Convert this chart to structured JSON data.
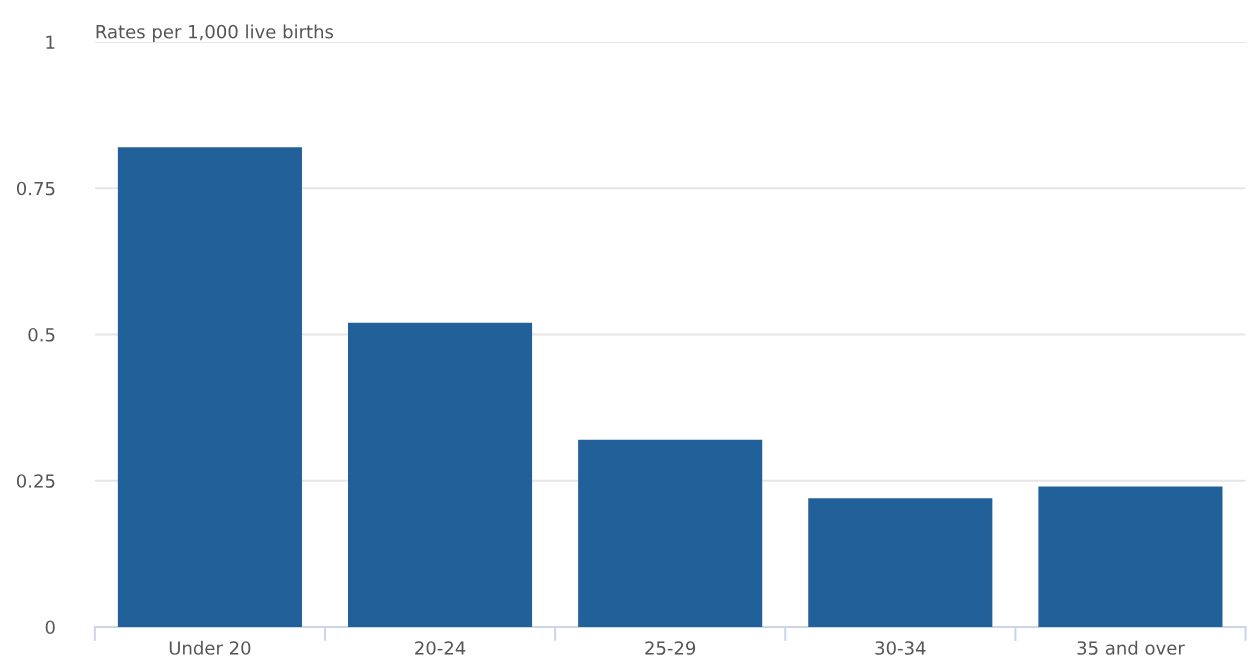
{
  "chart_data": {
    "type": "bar",
    "ylabel": "Rates per 1,000 live births",
    "categories": [
      "Under 20",
      "20-24",
      "25-29",
      "30-34",
      "35 and over"
    ],
    "values": [
      0.82,
      0.52,
      0.32,
      0.22,
      0.24
    ],
    "color": "#22609a",
    "ylim": [
      0,
      1
    ],
    "yticks": [
      0,
      {
        "value": 0.25,
        "label": "0.25"
      },
      {
        "value": 0.5,
        "label": "0.5"
      },
      {
        "value": 0.75,
        "label": "0.75"
      },
      1
    ],
    "grid": "y",
    "legend": false
  }
}
